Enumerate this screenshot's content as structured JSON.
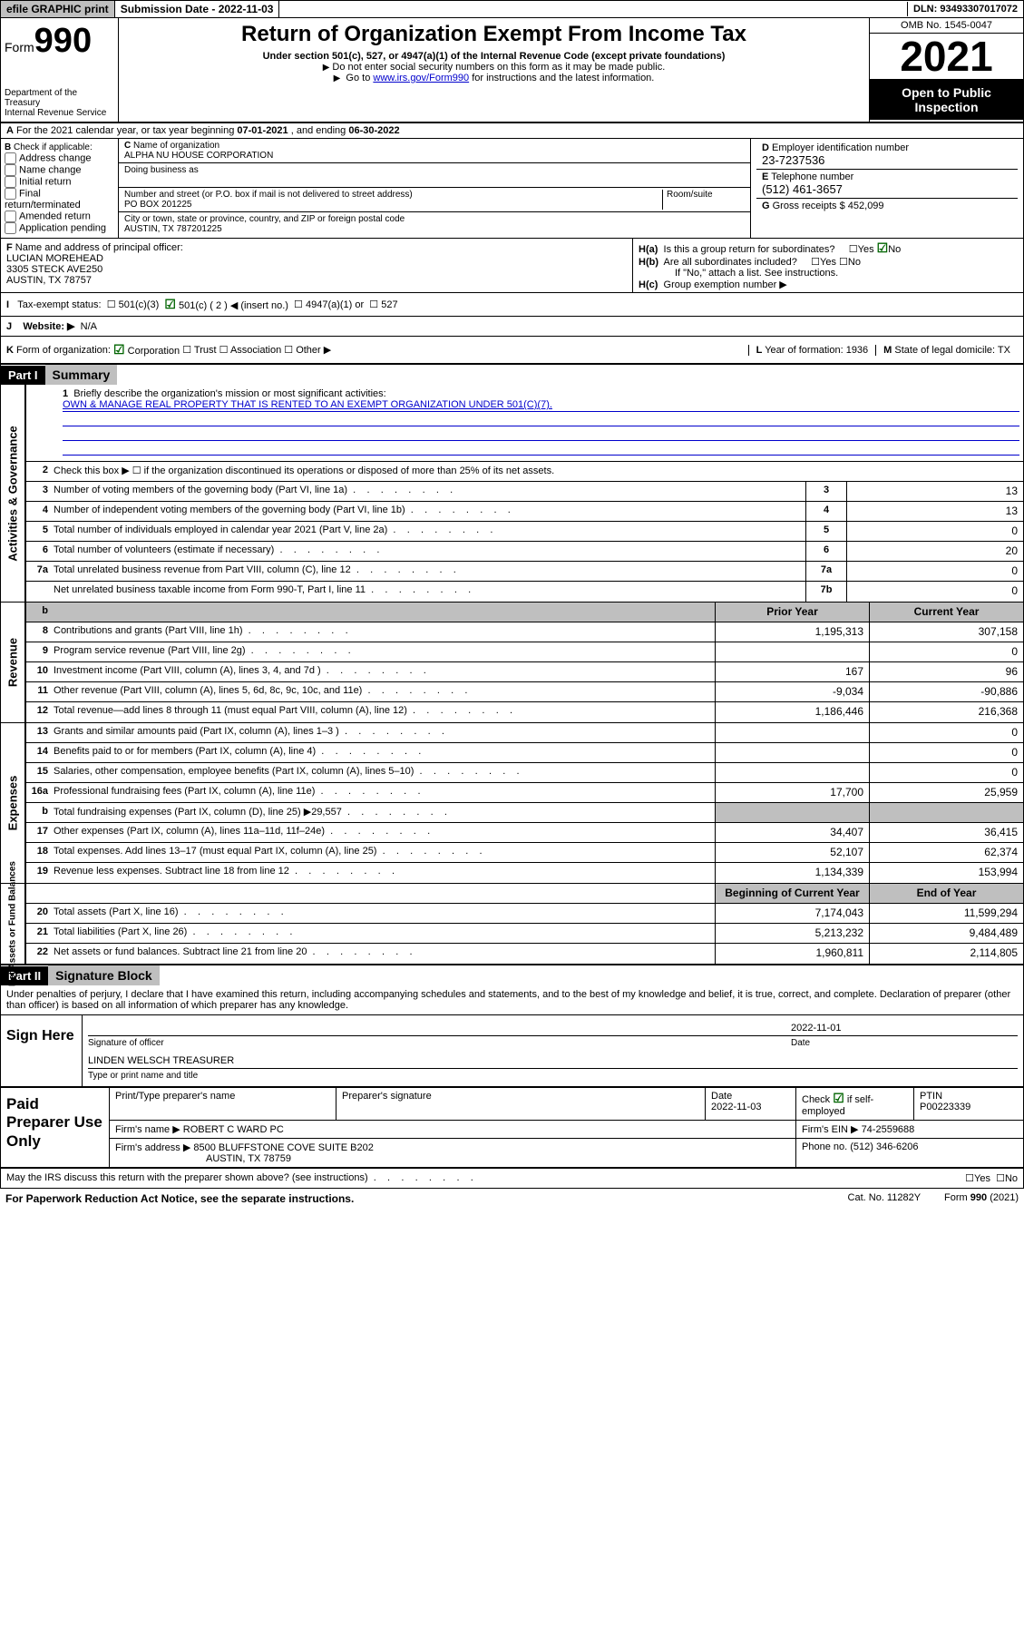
{
  "topbar": {
    "efile": "efile GRAPHIC print",
    "submission": "Submission Date - 2022-11-03",
    "dln": "DLN: 93493307017072"
  },
  "header": {
    "form_word": "Form",
    "form_num": "990",
    "title": "Return of Organization Exempt From Income Tax",
    "subtitle": "Under section 501(c), 527, or 4947(a)(1) of the Internal Revenue Code (except private foundations)",
    "note1": "Do not enter social security numbers on this form as it may be made public.",
    "note2_pre": "Go to ",
    "note2_link": "www.irs.gov/Form990",
    "note2_post": " for instructions and the latest information.",
    "dept": "Department of the Treasury",
    "irs": "Internal Revenue Service",
    "omb": "OMB No. 1545-0047",
    "year": "2021",
    "inspect1": "Open to Public",
    "inspect2": "Inspection"
  },
  "row_a": {
    "text_pre": "For the 2021 calendar year, or tax year beginning ",
    "begin": "07-01-2021",
    "mid": " , and ending ",
    "end": "06-30-2022"
  },
  "box_b": {
    "label": "Check if applicable:",
    "opts": [
      "Address change",
      "Name change",
      "Initial return",
      "Final return/terminated",
      "Amended return",
      "Application pending"
    ]
  },
  "box_c": {
    "name_label": "Name of organization",
    "name": "ALPHA NU HOUSE CORPORATION",
    "dba_label": "Doing business as",
    "dba": "",
    "addr_label": "Number and street (or P.O. box if mail is not delivered to street address)",
    "room_label": "Room/suite",
    "addr": "PO BOX 201225",
    "city_label": "City or town, state or province, country, and ZIP or foreign postal code",
    "city": "AUSTIN, TX  787201225"
  },
  "box_d": {
    "label": "Employer identification number",
    "val": "23-7237536"
  },
  "box_e": {
    "label": "Telephone number",
    "val": "(512) 461-3657"
  },
  "box_g": {
    "label": "Gross receipts $",
    "val": "452,099"
  },
  "box_f": {
    "label": "Name and address of principal officer:",
    "name": "LUCIAN MOREHEAD",
    "addr1": "3305 STECK AVE250",
    "addr2": "AUSTIN, TX  78757"
  },
  "box_h": {
    "ha": "Is this a group return for subordinates?",
    "hb": "Are all subordinates included?",
    "hb_note": "If \"No,\" attach a list. See instructions.",
    "hc": "Group exemption number ▶"
  },
  "row_i": {
    "label": "Tax-exempt status:",
    "opts": [
      "501(c)(3)",
      "501(c) ( 2 ) ◀ (insert no.)",
      "4947(a)(1) or",
      "527"
    ]
  },
  "row_j": {
    "label": "Website: ▶",
    "val": "N/A"
  },
  "row_k": {
    "label": "Form of organization:",
    "opts": [
      "Corporation",
      "Trust",
      "Association",
      "Other ▶"
    ],
    "l": "Year of formation: 1936",
    "m": "State of legal domicile: TX"
  },
  "part1": {
    "hdr": "Part I",
    "title": "Summary",
    "line1_label": "Briefly describe the organization's mission or most significant activities:",
    "mission": "OWN & MANAGE REAL PROPERTY THAT IS RENTED TO AN EXEMPT ORGANIZATION UNDER 501(C)(7).",
    "line2": "Check this box ▶ ☐  if the organization discontinued its operations or disposed of more than 25% of its net assets.",
    "side_gov": "Activities & Governance",
    "side_rev": "Revenue",
    "side_exp": "Expenses",
    "side_net": "Net Assets or Fund Balances",
    "hdr_prior": "Prior Year",
    "hdr_curr": "Current Year",
    "hdr_begin": "Beginning of Current Year",
    "hdr_end": "End of Year",
    "lines_gov": [
      {
        "n": "3",
        "t": "Number of voting members of the governing body (Part VI, line 1a)",
        "box": "3",
        "v": "13"
      },
      {
        "n": "4",
        "t": "Number of independent voting members of the governing body (Part VI, line 1b)",
        "box": "4",
        "v": "13"
      },
      {
        "n": "5",
        "t": "Total number of individuals employed in calendar year 2021 (Part V, line 2a)",
        "box": "5",
        "v": "0"
      },
      {
        "n": "6",
        "t": "Total number of volunteers (estimate if necessary)",
        "box": "6",
        "v": "20"
      },
      {
        "n": "7a",
        "t": "Total unrelated business revenue from Part VIII, column (C), line 12",
        "box": "7a",
        "v": "0"
      },
      {
        "n": "",
        "t": "Net unrelated business taxable income from Form 990-T, Part I, line 11",
        "box": "7b",
        "v": "0"
      }
    ],
    "lines_rev": [
      {
        "n": "8",
        "t": "Contributions and grants (Part VIII, line 1h)",
        "p": "1,195,313",
        "c": "307,158"
      },
      {
        "n": "9",
        "t": "Program service revenue (Part VIII, line 2g)",
        "p": "",
        "c": "0"
      },
      {
        "n": "10",
        "t": "Investment income (Part VIII, column (A), lines 3, 4, and 7d )",
        "p": "167",
        "c": "96"
      },
      {
        "n": "11",
        "t": "Other revenue (Part VIII, column (A), lines 5, 6d, 8c, 9c, 10c, and 11e)",
        "p": "-9,034",
        "c": "-90,886"
      },
      {
        "n": "12",
        "t": "Total revenue—add lines 8 through 11 (must equal Part VIII, column (A), line 12)",
        "p": "1,186,446",
        "c": "216,368"
      }
    ],
    "lines_exp": [
      {
        "n": "13",
        "t": "Grants and similar amounts paid (Part IX, column (A), lines 1–3 )",
        "p": "",
        "c": "0"
      },
      {
        "n": "14",
        "t": "Benefits paid to or for members (Part IX, column (A), line 4)",
        "p": "",
        "c": "0"
      },
      {
        "n": "15",
        "t": "Salaries, other compensation, employee benefits (Part IX, column (A), lines 5–10)",
        "p": "",
        "c": "0"
      },
      {
        "n": "16a",
        "t": "Professional fundraising fees (Part IX, column (A), line 11e)",
        "p": "17,700",
        "c": "25,959"
      },
      {
        "n": "b",
        "t": "Total fundraising expenses (Part IX, column (D), line 25) ▶29,557",
        "p": "shaded",
        "c": "shaded"
      },
      {
        "n": "17",
        "t": "Other expenses (Part IX, column (A), lines 11a–11d, 11f–24e)",
        "p": "34,407",
        "c": "36,415"
      },
      {
        "n": "18",
        "t": "Total expenses. Add lines 13–17 (must equal Part IX, column (A), line 25)",
        "p": "52,107",
        "c": "62,374"
      },
      {
        "n": "19",
        "t": "Revenue less expenses. Subtract line 18 from line 12",
        "p": "1,134,339",
        "c": "153,994"
      }
    ],
    "lines_net": [
      {
        "n": "20",
        "t": "Total assets (Part X, line 16)",
        "p": "7,174,043",
        "c": "11,599,294"
      },
      {
        "n": "21",
        "t": "Total liabilities (Part X, line 26)",
        "p": "5,213,232",
        "c": "9,484,489"
      },
      {
        "n": "22",
        "t": "Net assets or fund balances. Subtract line 21 from line 20",
        "p": "1,960,811",
        "c": "2,114,805"
      }
    ]
  },
  "part2": {
    "hdr": "Part II",
    "title": "Signature Block",
    "intro": "Under penalties of perjury, I declare that I have examined this return, including accompanying schedules and statements, and to the best of my knowledge and belief, it is true, correct, and complete. Declaration of preparer (other than officer) is based on all information of which preparer has any knowledge.",
    "sign_here": "Sign Here",
    "sig_officer": "Signature of officer",
    "sig_date_label": "Date",
    "sig_date": "2022-11-01",
    "officer_name": "LINDEN WELSCH TREASURER",
    "officer_sub": "Type or print name and title",
    "paid": "Paid Preparer Use Only",
    "prep_name_label": "Print/Type preparer's name",
    "prep_sig_label": "Preparer's signature",
    "prep_date_label": "Date",
    "prep_date": "2022-11-03",
    "prep_check": "Check ☑ if self-employed",
    "ptin_label": "PTIN",
    "ptin": "P00223339",
    "firm_name_label": "Firm's name   ▶",
    "firm_name": "ROBERT C WARD PC",
    "firm_ein_label": "Firm's EIN ▶",
    "firm_ein": "74-2559688",
    "firm_addr_label": "Firm's address ▶",
    "firm_addr1": "8500 BLUFFSTONE COVE SUITE B202",
    "firm_addr2": "AUSTIN, TX  78759",
    "phone_label": "Phone no.",
    "phone": "(512) 346-6206",
    "discuss": "May the IRS discuss this return with the preparer shown above? (see instructions)"
  },
  "footer": {
    "pwra": "For Paperwork Reduction Act Notice, see the separate instructions.",
    "cat": "Cat. No. 11282Y",
    "form": "Form 990 (2021)"
  },
  "labels": {
    "yes": "Yes",
    "no": "No",
    "b_pre": "B",
    "c_pre": "C",
    "d_pre": "D",
    "e_pre": "E",
    "f_pre": "F",
    "g_pre": "G",
    "i_pre": "I",
    "j_pre": "J",
    "k_pre": "K",
    "l_pre": "L",
    "m_pre": "M",
    "ha_pre": "H(a)",
    "hb_pre": "H(b)",
    "hc_pre": "H(c)",
    "a_pre": "A"
  }
}
